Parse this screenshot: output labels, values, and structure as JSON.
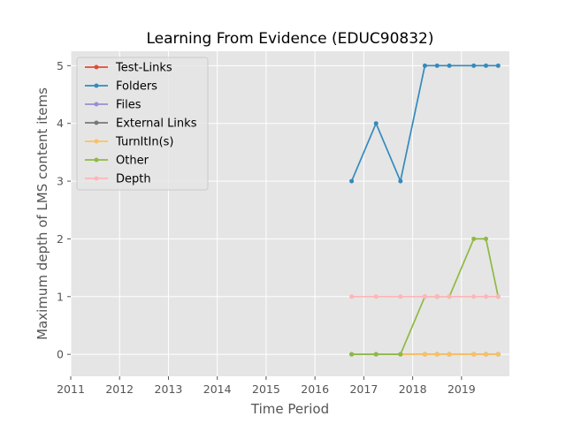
{
  "chart_data": {
    "type": "line",
    "title": "Learning From Evidence (EDUC90832)",
    "xlabel": "Time Period",
    "ylabel": "Maximum depth of LMS content items",
    "xlim": [
      2011.0,
      2019.98
    ],
    "ylim": [
      -0.38,
      5.25
    ],
    "xticks": [
      2011,
      2012,
      2013,
      2014,
      2015,
      2016,
      2017,
      2018,
      2019
    ],
    "yticks": [
      0,
      1,
      2,
      3,
      4,
      5
    ],
    "grid": true,
    "legend_position": "top-left",
    "series": [
      {
        "name": "Test-Links",
        "color": "#e24a33",
        "x": [],
        "y": []
      },
      {
        "name": "Folders",
        "color": "#348abd",
        "x": [
          2016.75,
          2017.25,
          2017.75,
          2018.25,
          2018.5,
          2018.75,
          2019.25,
          2019.5,
          2019.75
        ],
        "y": [
          3,
          4,
          3,
          5,
          5,
          5,
          5,
          5,
          5
        ]
      },
      {
        "name": "Files",
        "color": "#988ed5",
        "x": [
          2016.75,
          2017.25,
          2017.75,
          2018.25,
          2018.5,
          2018.75,
          2019.25,
          2019.5,
          2019.75
        ],
        "y": [
          0,
          0,
          0,
          0,
          0,
          0,
          0,
          0,
          0
        ]
      },
      {
        "name": "External Links",
        "color": "#777777",
        "x": [
          2016.75,
          2017.25,
          2017.75,
          2018.25,
          2018.5,
          2018.75,
          2019.25,
          2019.5,
          2019.75
        ],
        "y": [
          0,
          0,
          0,
          0,
          0,
          0,
          0,
          0,
          0
        ]
      },
      {
        "name": "TurnItIn(s)",
        "color": "#fbc15e",
        "x": [
          2017.75,
          2018.25,
          2018.5,
          2018.75,
          2019.25,
          2019.5,
          2019.75
        ],
        "y": [
          0,
          0,
          0,
          0,
          0,
          0,
          0
        ]
      },
      {
        "name": "Other",
        "color": "#8eba42",
        "x": [
          2016.75,
          2017.25,
          2017.75,
          2018.25,
          2018.5,
          2018.75,
          2019.25,
          2019.5,
          2019.75
        ],
        "y": [
          0,
          0,
          0,
          1,
          1,
          1,
          2,
          2,
          1
        ]
      },
      {
        "name": "Depth",
        "color": "#ffb5b8",
        "x": [
          2016.75,
          2017.25,
          2017.75,
          2018.25,
          2018.5,
          2018.75,
          2019.25,
          2019.5,
          2019.75
        ],
        "y": [
          1,
          1,
          1,
          1,
          1,
          1,
          1,
          1,
          1
        ]
      }
    ]
  }
}
